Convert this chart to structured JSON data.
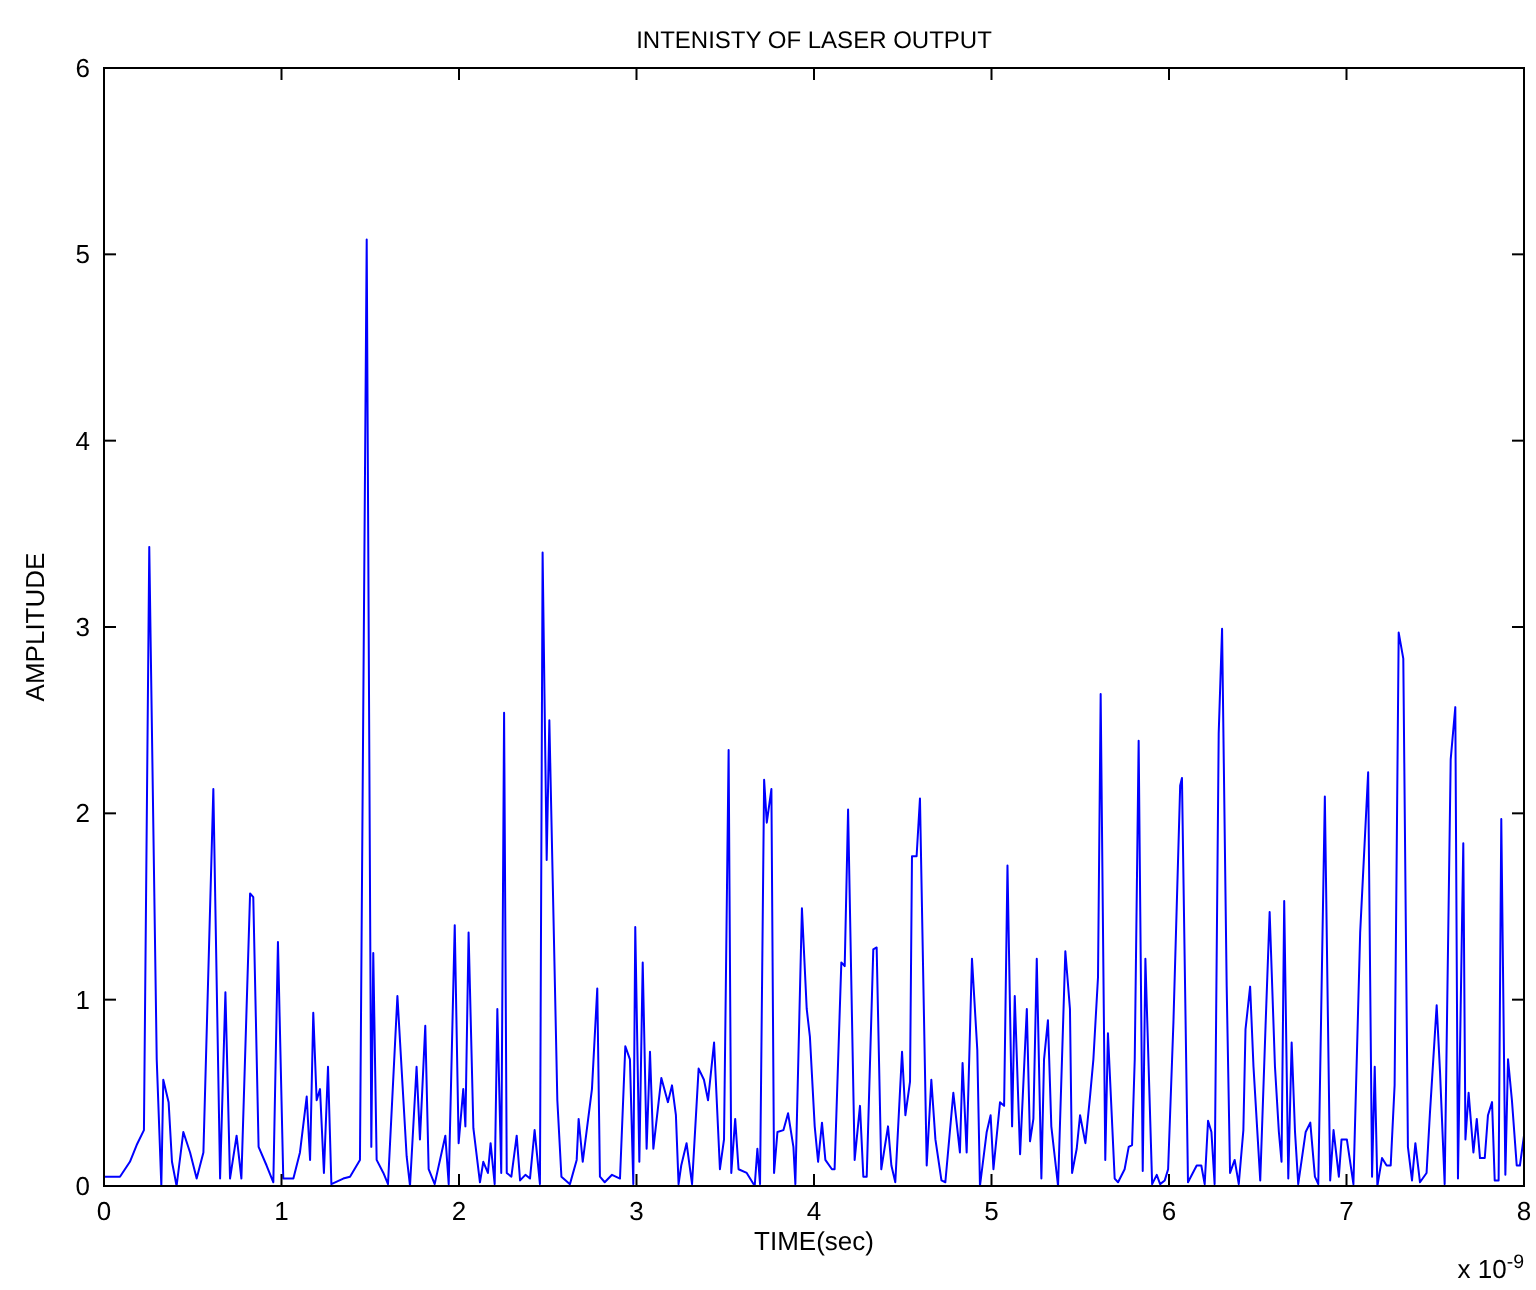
{
  "chart_data": {
    "type": "line",
    "title": "INTENISTY OF LASER OUTPUT",
    "xlabel": "TIME(sec)",
    "ylabel": "AMPLITUDE",
    "annotations": [
      "x 10$^{-9}$"
    ],
    "xlim": [
      0,
      8
    ],
    "xticks": [
      0,
      1,
      2,
      3,
      4,
      5,
      6,
      7,
      8
    ],
    "ylim": [
      0,
      6
    ],
    "yticks": [
      0,
      1,
      2,
      3,
      4,
      5,
      6
    ],
    "grid": false,
    "marker": "none",
    "line_style": "solid",
    "series": [
      {
        "color": "#0000ff",
        "x": [
          0,
          0.09,
          0.146,
          0.184,
          0.225,
          0.255,
          0.297,
          0.323,
          0.334,
          0.364,
          0.383,
          0.409,
          0.447,
          0.485,
          0.522,
          0.56,
          0.616,
          0.654,
          0.684,
          0.71,
          0.747,
          0.774,
          0.823,
          0.841,
          0.871,
          0.916,
          0.954,
          0.98,
          1.01,
          1.067,
          1.104,
          1.142,
          1.161,
          1.179,
          1.198,
          1.217,
          1.239,
          1.262,
          1.281,
          1.348,
          1.386,
          1.442,
          1.48,
          1.506,
          1.517,
          1.536,
          1.574,
          1.6,
          1.653,
          1.705,
          1.724,
          1.761,
          1.78,
          1.81,
          1.829,
          1.863,
          1.923,
          1.942,
          1.976,
          1.998,
          2.024,
          2.036,
          2.054,
          2.081,
          2.118,
          2.137,
          2.163,
          2.178,
          2.201,
          2.216,
          2.238,
          2.254,
          2.269,
          2.295,
          2.325,
          2.344,
          2.374,
          2.4,
          2.426,
          2.456,
          2.471,
          2.494,
          2.509,
          2.554,
          2.577,
          2.625,
          2.663,
          2.674,
          2.697,
          2.749,
          2.779,
          2.794,
          2.821,
          2.862,
          2.907,
          2.937,
          2.963,
          2.982,
          2.993,
          3.016,
          3.035,
          3.057,
          3.076,
          3.095,
          3.14,
          3.177,
          3.2,
          3.222,
          3.237,
          3.252,
          3.282,
          3.313,
          3.35,
          3.38,
          3.403,
          3.437,
          3.47,
          3.493,
          3.519,
          3.534,
          3.556,
          3.575,
          3.621,
          3.666,
          3.681,
          3.696,
          3.719,
          3.734,
          3.76,
          3.775,
          3.794,
          3.828,
          3.854,
          3.884,
          3.895,
          3.932,
          3.959,
          3.977,
          4.004,
          4.023,
          4.045,
          4.064,
          4.101,
          4.116,
          4.154,
          4.173,
          4.192,
          4.229,
          4.259,
          4.278,
          4.297,
          4.334,
          4.353,
          4.379,
          4.417,
          4.436,
          4.458,
          4.496,
          4.515,
          4.541,
          4.552,
          4.578,
          4.597,
          4.635,
          4.661,
          4.684,
          4.718,
          4.74,
          4.785,
          4.822,
          4.837,
          4.86,
          4.89,
          4.92,
          4.935,
          4.973,
          4.995,
          5.011,
          5.048,
          5.071,
          5.09,
          5.116,
          5.131,
          5.161,
          5.199,
          5.217,
          5.236,
          5.255,
          5.281,
          5.296,
          5.318,
          5.337,
          5.375,
          5.416,
          5.442,
          5.454,
          5.48,
          5.499,
          5.529,
          5.555,
          5.574,
          5.6,
          5.615,
          5.641,
          5.656,
          5.694,
          5.713,
          5.75,
          5.773,
          5.792,
          5.807,
          5.829,
          5.852,
          5.867,
          5.905,
          5.931,
          5.95,
          5.976,
          5.995,
          6.025,
          6.063,
          6.073,
          6.107,
          6.156,
          6.182,
          6.201,
          6.22,
          6.239,
          6.257,
          6.28,
          6.299,
          6.325,
          6.344,
          6.37,
          6.393,
          6.419,
          6.431,
          6.457,
          6.476,
          6.514,
          6.544,
          6.567,
          6.597,
          6.619,
          6.634,
          6.649,
          6.672,
          6.691,
          6.71,
          6.728,
          6.77,
          6.796,
          6.822,
          6.841,
          6.878,
          6.908,
          6.927,
          6.957,
          6.972,
          7.002,
          7.039,
          7.077,
          7.122,
          7.144,
          7.159,
          7.174,
          7.2,
          7.226,
          7.249,
          7.271,
          7.294,
          7.32,
          7.346,
          7.369,
          7.388,
          7.414,
          7.451,
          7.47,
          7.508,
          7.527,
          7.553,
          7.587,
          7.613,
          7.628,
          7.658,
          7.67,
          7.688,
          7.715,
          7.734,
          7.752,
          7.779,
          7.797,
          7.82,
          7.835,
          7.857,
          7.872,
          7.895,
          7.91,
          7.932,
          7.959,
          7.977,
          8.0
        ],
        "values": [
          0.05,
          0.05,
          0.13,
          0.22,
          0.3,
          3.43,
          0.68,
          0,
          0.57,
          0.45,
          0.13,
          0,
          0.29,
          0.18,
          0.04,
          0.18,
          2.13,
          0.04,
          1.04,
          0.04,
          0.27,
          0.04,
          1.57,
          1.55,
          0.21,
          0.11,
          0.02,
          1.31,
          0.04,
          0.04,
          0.18,
          0.48,
          0.14,
          0.93,
          0.46,
          0.52,
          0.07,
          0.64,
          0.01,
          0.04,
          0.05,
          0.14,
          5.08,
          0.21,
          1.25,
          0.14,
          0.07,
          0.01,
          1.02,
          0.16,
          0,
          0.64,
          0.25,
          0.86,
          0.09,
          0.01,
          0.27,
          0.01,
          1.4,
          0.23,
          0.52,
          0.32,
          1.36,
          0.31,
          0.02,
          0.13,
          0.07,
          0.23,
          0.01,
          0.95,
          0.07,
          2.54,
          0.07,
          0.05,
          0.27,
          0.03,
          0.06,
          0.04,
          0.3,
          0.01,
          3.4,
          1.75,
          2.5,
          0.46,
          0.05,
          0.01,
          0.14,
          0.36,
          0.13,
          0.52,
          1.06,
          0.05,
          0.02,
          0.06,
          0.04,
          0.75,
          0.68,
          0.01,
          1.39,
          0.13,
          1.2,
          0.2,
          0.72,
          0.2,
          0.58,
          0.45,
          0.54,
          0.38,
          0.01,
          0.11,
          0.23,
          0.01,
          0.63,
          0.57,
          0.46,
          0.77,
          0.09,
          0.25,
          2.34,
          0.07,
          0.36,
          0.09,
          0.07,
          0,
          0.2,
          0.01,
          2.18,
          1.95,
          2.13,
          0.07,
          0.29,
          0.3,
          0.39,
          0.21,
          0.01,
          1.49,
          0.95,
          0.8,
          0.32,
          0.13,
          0.34,
          0.14,
          0.09,
          0.09,
          1.2,
          1.18,
          2.02,
          0.14,
          0.43,
          0.05,
          0.05,
          1.27,
          1.28,
          0.09,
          0.32,
          0.11,
          0.02,
          0.72,
          0.38,
          0.56,
          1.77,
          1.77,
          2.08,
          0.11,
          0.57,
          0.25,
          0.03,
          0.02,
          0.5,
          0.18,
          0.66,
          0.18,
          1.22,
          0.73,
          0,
          0.29,
          0.38,
          0.09,
          0.45,
          0.43,
          1.72,
          0.32,
          1.02,
          0.17,
          0.95,
          0.24,
          0.36,
          1.22,
          0.04,
          0.68,
          0.89,
          0.32,
          0,
          1.26,
          0.95,
          0.07,
          0.2,
          0.38,
          0.23,
          0.48,
          0.68,
          1.12,
          2.64,
          0.14,
          0.82,
          0.04,
          0.02,
          0.09,
          0.21,
          0.22,
          0.68,
          2.39,
          0.08,
          1.22,
          0.01,
          0.06,
          0.01,
          0.03,
          0.09,
          0.88,
          2.15,
          2.19,
          0.02,
          0.11,
          0.11,
          0.01,
          0.35,
          0.29,
          0.01,
          2.43,
          2.99,
          1.07,
          0.07,
          0.14,
          0.01,
          0.3,
          0.84,
          1.07,
          0.64,
          0.03,
          0.86,
          1.47,
          0.64,
          0.29,
          0.13,
          1.53,
          0.04,
          0.77,
          0.29,
          0.01,
          0.29,
          0.34,
          0.05,
          0.01,
          2.09,
          0.03,
          0.3,
          0.05,
          0.25,
          0.25,
          0.01,
          1.36,
          2.22,
          0.05,
          0.64,
          0,
          0.15,
          0.11,
          0.11,
          0.54,
          2.97,
          2.83,
          0.21,
          0.03,
          0.23,
          0.02,
          0.07,
          0.39,
          0.97,
          0.61,
          0.01,
          2.29,
          2.57,
          0.04,
          1.84,
          0.25,
          0.5,
          0.18,
          0.36,
          0.15,
          0.15,
          0.38,
          0.45,
          0.03,
          0.03,
          1.97,
          0.06,
          0.68,
          0.46,
          0.11,
          0.11,
          0.27
        ]
      }
    ]
  }
}
